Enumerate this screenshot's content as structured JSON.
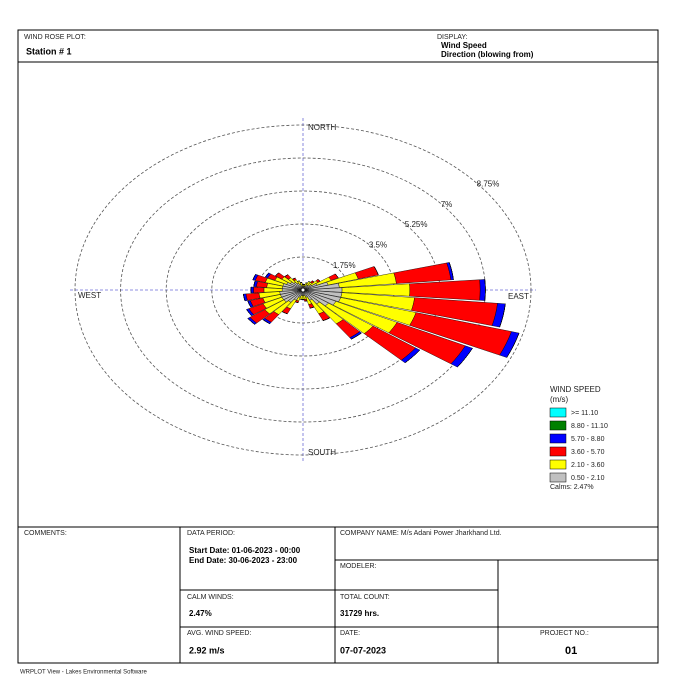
{
  "header": {
    "plot_label": "WIND ROSE PLOT:",
    "station": "Station #  1",
    "display_label": "DISPLAY:",
    "display_line1": "Wind Speed",
    "display_line2": "Direction (blowing from)"
  },
  "chart_data": {
    "type": "wind_rose",
    "x": [
      0,
      10,
      20,
      30,
      40,
      50,
      60,
      70,
      80,
      90,
      100,
      110,
      120,
      130,
      140,
      150,
      160,
      170,
      180,
      190,
      200,
      210,
      220,
      230,
      240,
      250,
      260,
      270,
      280,
      290,
      300,
      310,
      320,
      330,
      340,
      350
    ],
    "series": [
      {
        "name": "0.50 - 2.10",
        "color": "#c0c0c0",
        "values": [
          0.2,
          0.2,
          0.2,
          0.3,
          0.3,
          0.4,
          0.6,
          1.0,
          1.4,
          1.5,
          1.5,
          1.5,
          1.4,
          1.2,
          0.9,
          0.6,
          0.4,
          0.3,
          0.3,
          0.3,
          0.4,
          0.6,
          0.8,
          0.9,
          0.9,
          0.9,
          0.9,
          0.8,
          0.8,
          0.8,
          0.7,
          0.6,
          0.5,
          0.4,
          0.3,
          0.2
        ]
      },
      {
        "name": "2.10 - 3.60",
        "color": "#ffff00",
        "values": [
          0.1,
          0.1,
          0.2,
          0.2,
          0.2,
          0.3,
          0.6,
          1.2,
          2.2,
          2.6,
          2.8,
          3.0,
          2.6,
          2.1,
          1.3,
          0.8,
          0.4,
          0.2,
          0.2,
          0.2,
          0.2,
          0.5,
          0.8,
          0.9,
          0.8,
          0.7,
          0.8,
          0.7,
          0.6,
          0.7,
          0.5,
          0.4,
          0.3,
          0.2,
          0.2,
          0.2
        ]
      },
      {
        "name": "3.60 - 5.70",
        "color": "#ff0000",
        "values": [
          0,
          0,
          0,
          0,
          0.1,
          0.1,
          0.3,
          0.8,
          2.1,
          2.7,
          3.2,
          3.8,
          2.9,
          2.0,
          0.9,
          0.4,
          0.2,
          0.1,
          0,
          0,
          0.1,
          0.3,
          0.5,
          0.7,
          0.6,
          0.5,
          0.5,
          0.4,
          0.4,
          0.4,
          0.3,
          0.3,
          0.2,
          0.1,
          0,
          0
        ]
      },
      {
        "name": "5.70 - 8.80",
        "color": "#0000ff",
        "values": [
          0,
          0,
          0,
          0,
          0,
          0,
          0,
          0,
          0.1,
          0.2,
          0.3,
          0.3,
          0.3,
          0.2,
          0.1,
          0,
          0,
          0,
          0,
          0,
          0,
          0,
          0.1,
          0.1,
          0.1,
          0.1,
          0.1,
          0.1,
          0.1,
          0.1,
          0.1,
          0,
          0,
          0,
          0,
          0
        ]
      },
      {
        "name": "8.80 - 11.10",
        "color": "#008000",
        "values": [
          0,
          0,
          0,
          0,
          0,
          0,
          0,
          0,
          0,
          0,
          0,
          0,
          0,
          0,
          0,
          0,
          0,
          0,
          0,
          0,
          0,
          0,
          0,
          0,
          0,
          0,
          0,
          0,
          0,
          0,
          0,
          0,
          0,
          0,
          0,
          0
        ]
      },
      {
        "name": ">= 11.10",
        "color": "#00ffff",
        "values": [
          0,
          0,
          0,
          0,
          0,
          0,
          0,
          0,
          0,
          0,
          0,
          0,
          0,
          0,
          0,
          0,
          0,
          0,
          0,
          0,
          0,
          0,
          0,
          0,
          0,
          0,
          0,
          0,
          0,
          0,
          0,
          0,
          0,
          0,
          0,
          0
        ]
      }
    ],
    "rlim": [
      0,
      8.75
    ],
    "rticks": [
      {
        "value": 1.75,
        "label": "1.75%"
      },
      {
        "value": 3.5,
        "label": "3.5%"
      },
      {
        "value": 5.25,
        "label": "5.25%"
      },
      {
        "value": 7,
        "label": "7%"
      },
      {
        "value": 8.75,
        "label": "8.75%"
      }
    ],
    "direction_labels": [
      "NORTH",
      "EAST",
      "SOUTH",
      "WEST"
    ],
    "legend_title": "WIND SPEED",
    "legend_unit": "(m/s)",
    "calms_label": "Calms: 2.47%"
  },
  "table": {
    "comments_label": "COMMENTS:",
    "data_period_label": "DATA PERIOD:",
    "start_date": "Start Date: 01-06-2023 - 00:00",
    "end_date": "End Date: 30-06-2023 - 23:00",
    "company": "COMPANY NAME: M/s Adani Power Jharkhand Ltd.",
    "modeler_label": "MODELER:",
    "calm_label": "CALM WINDS:",
    "calm_value": "2.47%",
    "total_label": "TOTAL COUNT:",
    "total_value": "31729 hrs.",
    "avg_label": "AVG. WIND SPEED:",
    "avg_value": "2.92 m/s",
    "date_label": "DATE:",
    "date_value": "07-07-2023",
    "project_label": "PROJECT NO.:",
    "project_value": "01"
  },
  "footer": "WRPLOT View - Lakes Environmental Software"
}
